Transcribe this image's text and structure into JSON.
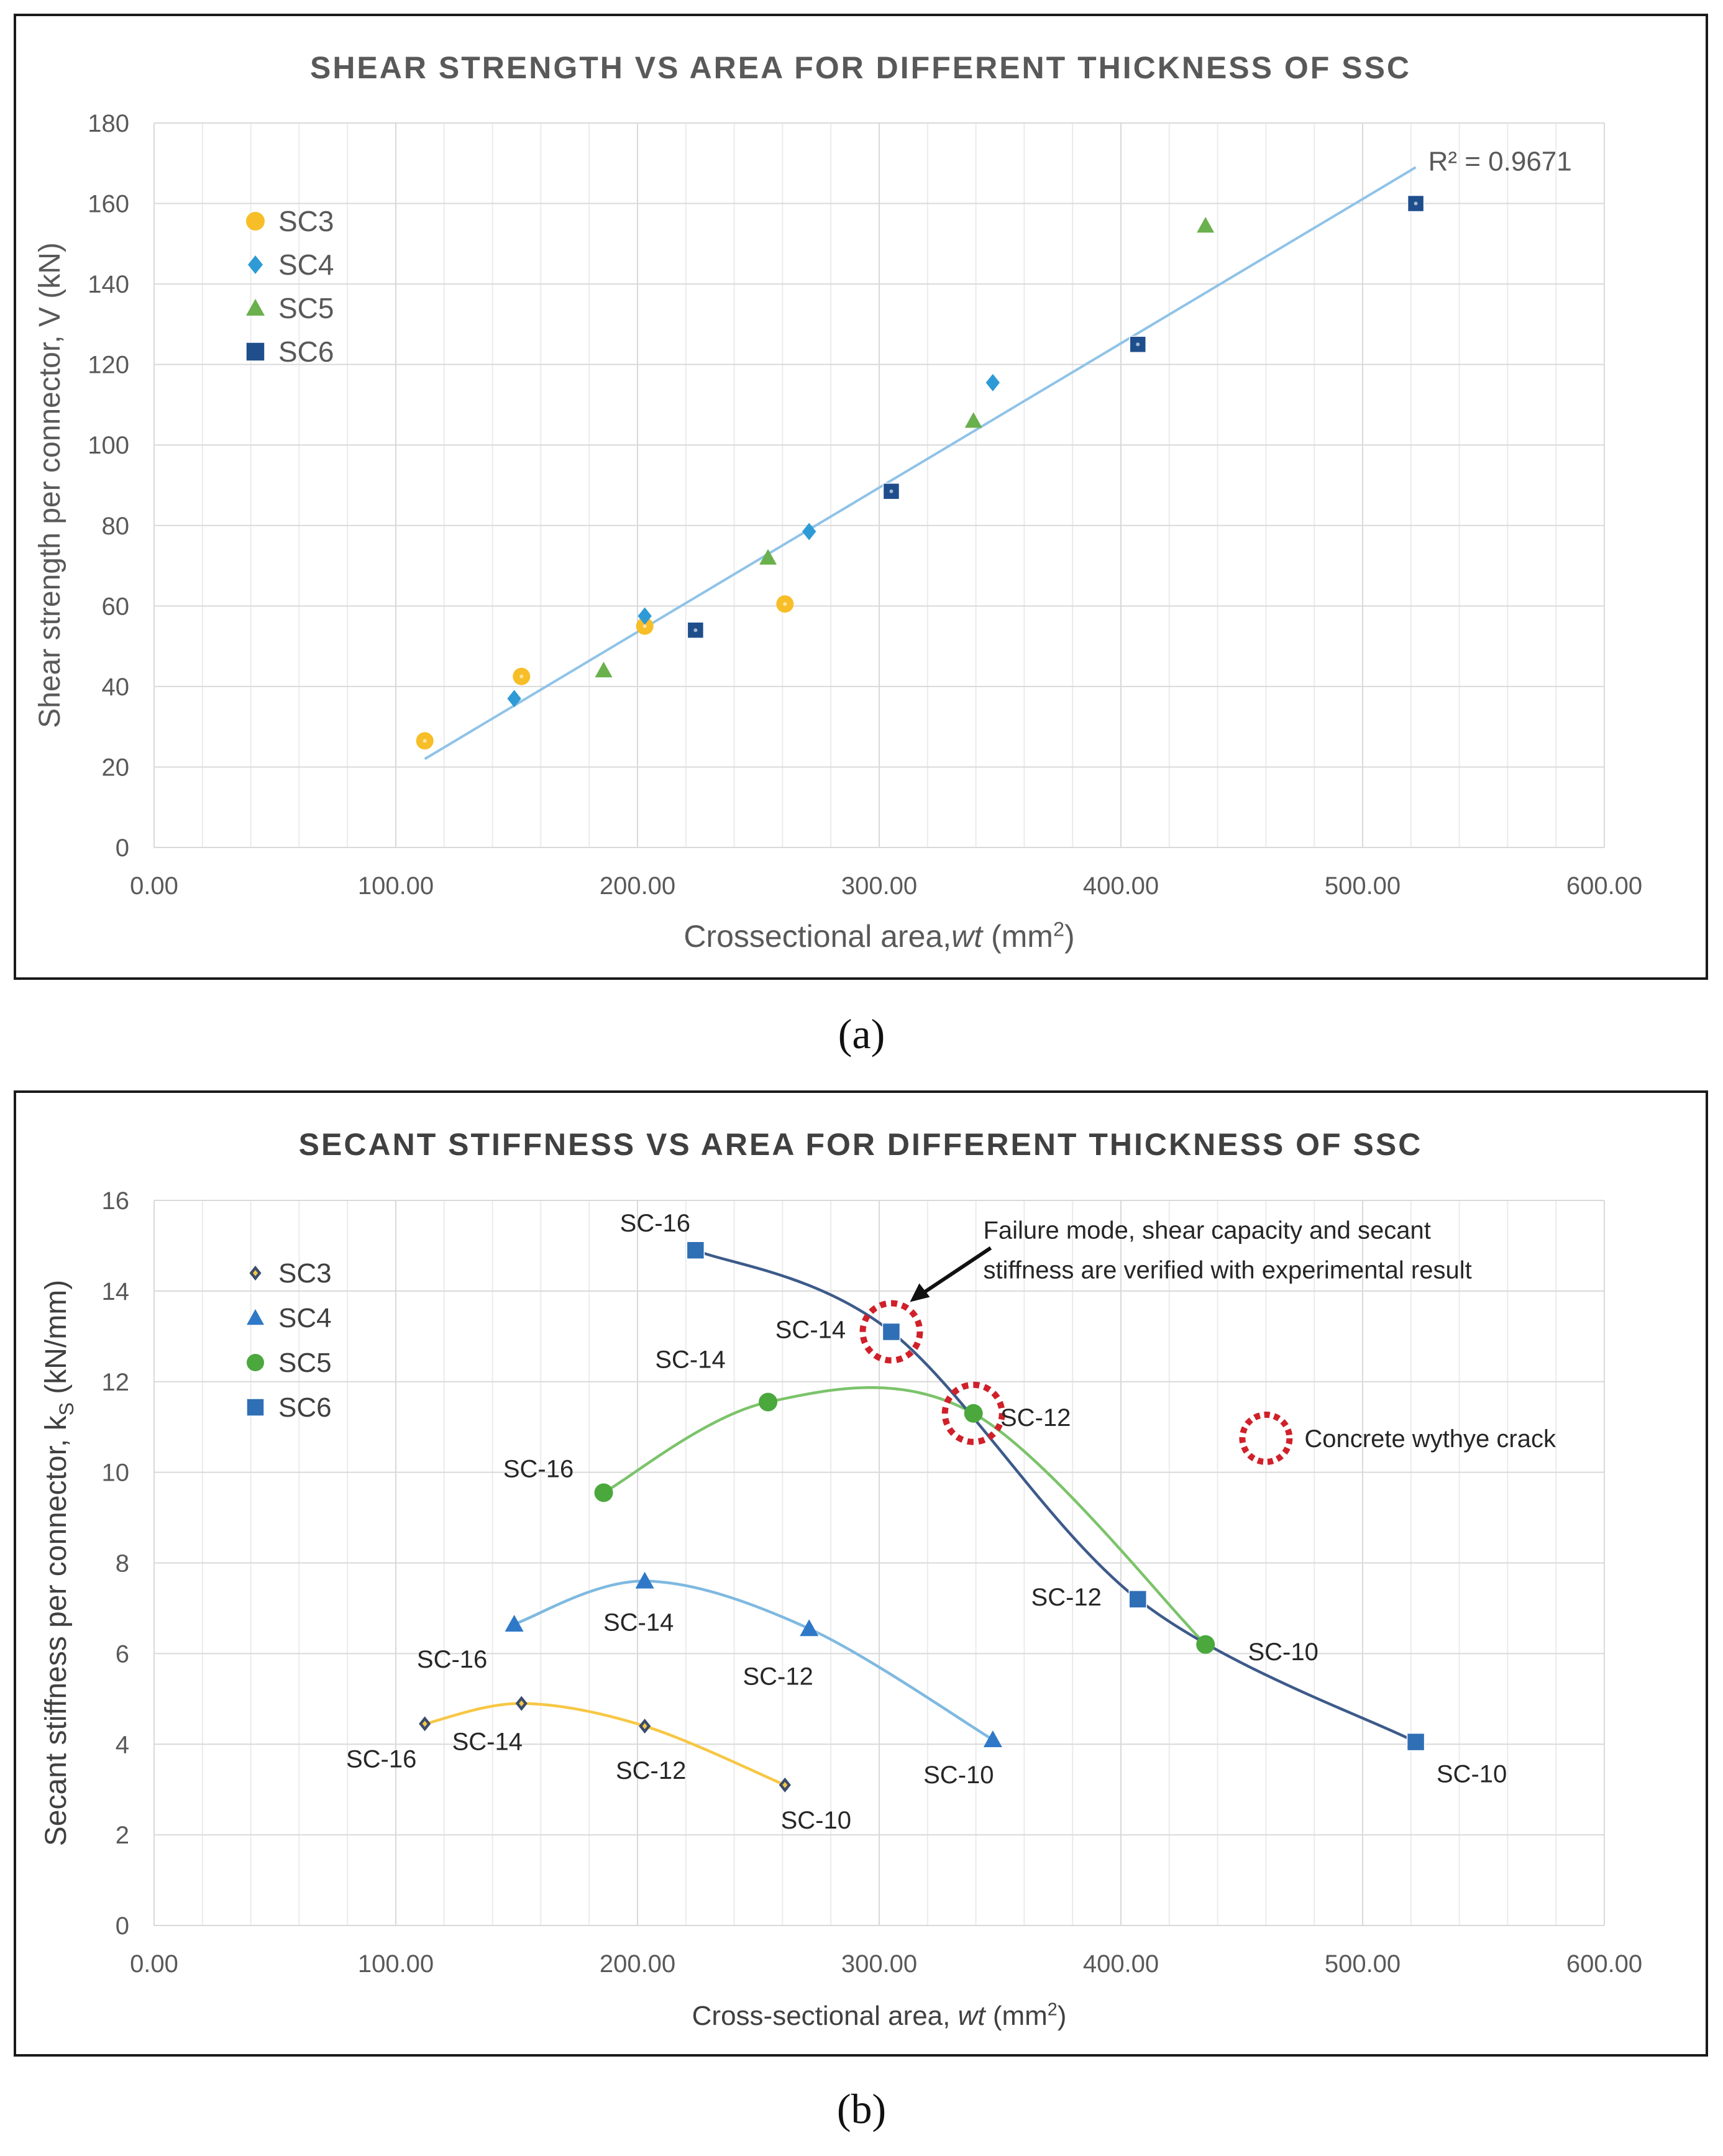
{
  "chart_data": [
    {
      "type": "scatter",
      "title": "SHEAR STRENGTH VS AREA FOR DIFFERENT THICKNESS OF SSC",
      "xlabel": "Crossectional area,wt (mm2)",
      "ylabel": "Shear strength per connector, V (kN)",
      "xlim": [
        0,
        600
      ],
      "ylim": [
        0,
        180
      ],
      "xticks": [
        "0.00",
        "100.00",
        "200.00",
        "300.00",
        "400.00",
        "500.00",
        "600.00"
      ],
      "yticks": [
        "0",
        "20",
        "40",
        "60",
        "80",
        "100",
        "120",
        "140",
        "160",
        "180"
      ],
      "xstep": 100,
      "ystep": 20,
      "grid": true,
      "legend_position": "top-left",
      "series": [
        {
          "name": "SC3",
          "marker": "circle",
          "color": "#f7be27",
          "x": [
            112,
            152,
            203,
            261
          ],
          "y": [
            26.5,
            42.5,
            55,
            60.5
          ]
        },
        {
          "name": "SC4",
          "marker": "diamond",
          "color": "#2e9bd6",
          "x": [
            149,
            203,
            271,
            347
          ],
          "y": [
            37,
            57.5,
            78.5,
            115.5
          ]
        },
        {
          "name": "SC5",
          "marker": "triangle",
          "color": "#6ab04c",
          "x": [
            186,
            254,
            339,
            435
          ],
          "y": [
            44,
            72,
            106,
            154.5
          ]
        },
        {
          "name": "SC6",
          "marker": "square",
          "color": "#1f4e8c",
          "x": [
            224,
            305,
            407,
            522
          ],
          "y": [
            54,
            88.5,
            125,
            160
          ]
        }
      ],
      "trendline": {
        "x": [
          112,
          522
        ],
        "y": [
          22,
          169
        ],
        "color": "#8fc3e8"
      },
      "annotation": "R² = 0.9671"
    },
    {
      "type": "line",
      "title": "SECANT STIFFNESS VS AREA FOR DIFFERENT THICKNESS OF SSC",
      "xlabel": "Cross-sectional area, wt (mm2)",
      "ylabel": "Secant stiffness per connector, kS (kN/mm)",
      "xlim": [
        0,
        600
      ],
      "ylim": [
        0,
        16
      ],
      "xticks": [
        "0.00",
        "100.00",
        "200.00",
        "300.00",
        "400.00",
        "500.00",
        "600.00"
      ],
      "yticks": [
        "0",
        "2",
        "4",
        "6",
        "8",
        "10",
        "12",
        "14",
        "16"
      ],
      "xstep": 100,
      "ystep": 2,
      "grid": true,
      "legend_position": "top-left",
      "series": [
        {
          "name": "SC3",
          "marker": "diamond",
          "color": "#f7c744",
          "marker_color": "#3b4c6b",
          "x": [
            112,
            152,
            203,
            261
          ],
          "y": [
            4.45,
            4.9,
            4.4,
            3.1
          ],
          "labels": [
            "SC-16",
            "SC-14",
            "SC-12",
            "SC-10"
          ]
        },
        {
          "name": "SC4",
          "marker": "triangle",
          "color": "#7fb9e0",
          "marker_color": "#2e78c7",
          "x": [
            149,
            203,
            271,
            347
          ],
          "y": [
            6.65,
            7.6,
            6.55,
            4.1
          ],
          "labels": [
            "SC-16",
            "SC-14",
            "SC-12",
            "SC-10"
          ]
        },
        {
          "name": "SC5",
          "marker": "circle",
          "color": "#7cc36b",
          "marker_color": "#4aa83c",
          "x": [
            186,
            254,
            339,
            435
          ],
          "y": [
            9.55,
            11.55,
            11.3,
            6.2
          ],
          "labels": [
            "SC-16",
            "SC-14",
            "SC-12",
            "SC-10"
          ]
        },
        {
          "name": "SC6",
          "marker": "square",
          "color": "#3d5a8a",
          "marker_color": "#2f6fb5",
          "x": [
            224,
            305,
            407,
            522
          ],
          "y": [
            14.9,
            13.1,
            7.2,
            4.05
          ],
          "labels": [
            "SC-16",
            "SC-14",
            "SC-12",
            "SC-10"
          ]
        }
      ],
      "annotations": [
        {
          "text_lines": [
            "Failure mode, shear capacity and secant",
            "stiffness are verified with experimental result"
          ],
          "target_x": 305,
          "target_y": 13.1
        },
        {
          "text": "Concrete wythye crack",
          "legend_marker": "dashed-circle",
          "marker_x": 460,
          "marker_y": 10.75
        }
      ],
      "highlights": [
        {
          "x": 305,
          "y": 13.1,
          "color": "#d0202a"
        },
        {
          "x": 339,
          "y": 11.3,
          "color": "#d0202a"
        }
      ]
    }
  ],
  "captions": {
    "a": "(a)",
    "b": "(b)"
  }
}
